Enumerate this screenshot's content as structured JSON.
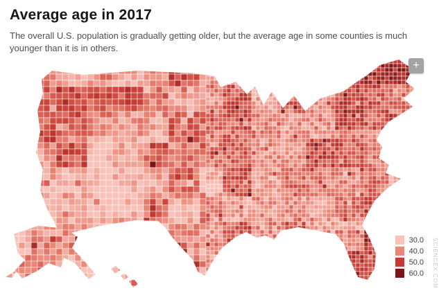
{
  "header": {
    "title": "Average age in 2017",
    "subtitle": "The overall U.S. population is gradually getting older, but the average age in some counties is much younger than it is in others."
  },
  "map": {
    "zoom_in_label": "+",
    "watermark": "SCIENCEX.COM"
  },
  "chart_data": {
    "type": "heatmap",
    "map_type": "choropleth-us-counties",
    "title": "Average age in 2017",
    "region": "United States (counties, incl. Alaska and Hawaii insets)",
    "variable": "Average age (years)",
    "year": 2017,
    "value_range": [
      30.0,
      60.0
    ],
    "legend": {
      "position": "bottom-right",
      "entries": [
        {
          "label": "30.0",
          "color": "#f8c4bb"
        },
        {
          "label": "40.0",
          "color": "#ea8878"
        },
        {
          "label": "50.0",
          "color": "#c53b32"
        },
        {
          "label": "60.0",
          "color": "#7d1517"
        }
      ]
    }
  }
}
